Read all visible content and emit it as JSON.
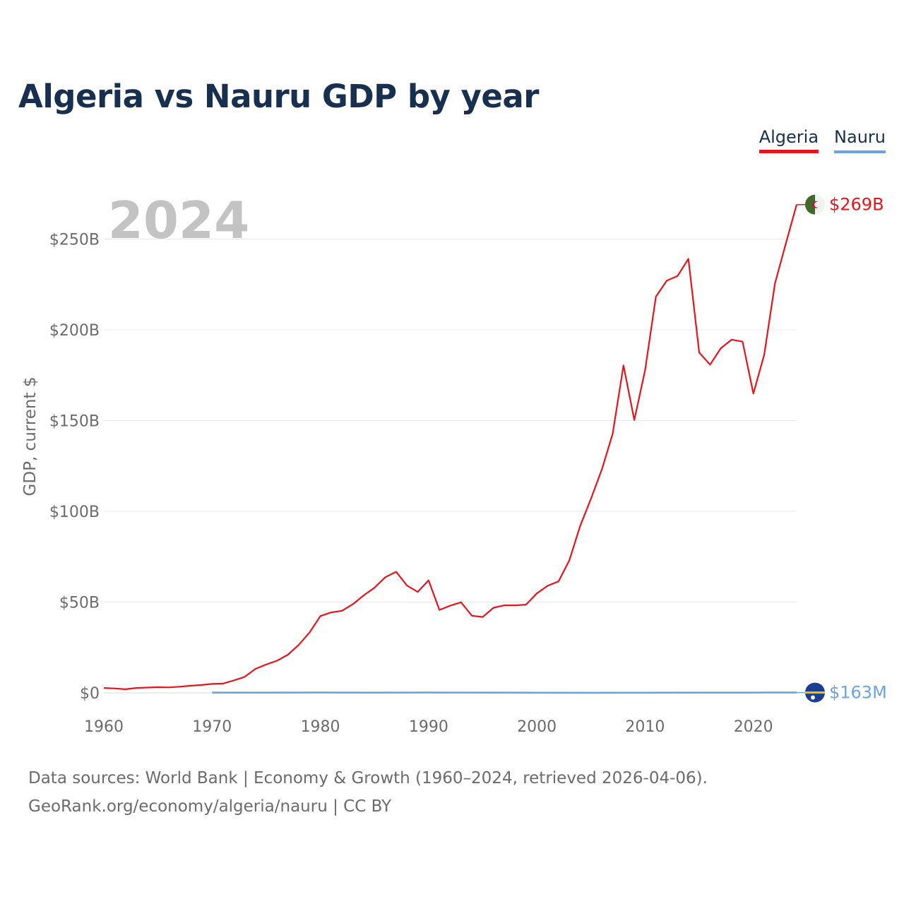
{
  "title": "Algeria vs Nauru GDP by year",
  "legend": [
    {
      "label": "Algeria",
      "color": "#e8141b"
    },
    {
      "label": "Nauru",
      "color": "#69a5e4"
    }
  ],
  "footer": {
    "line1": "Data sources: World Bank | Economy & Growth (1960–2024, retrieved 2026-04-06).",
    "line2": "GeoRank.org/economy/algeria/nauru | CC BY"
  },
  "chart_data": {
    "type": "line",
    "title": "Algeria vs Nauru GDP by year",
    "year_watermark": "2024",
    "ylabel": "GDP, current $",
    "xlabel": "",
    "xlim": [
      1960,
      2024
    ],
    "ylim": [
      0,
      260
    ],
    "y_unit": "billions of current US$",
    "x_ticks": [
      1960,
      1970,
      1980,
      1990,
      2000,
      2010,
      2020
    ],
    "x_tick_labels": [
      "1960",
      "1970",
      "1980",
      "1990",
      "2000",
      "2010",
      "2020"
    ],
    "y_ticks": [
      0,
      50,
      100,
      150,
      200,
      250
    ],
    "y_tick_labels": [
      "$0",
      "$50B",
      "$100B",
      "$150B",
      "$200B",
      "$250B"
    ],
    "grid": true,
    "legend_position": "top-right",
    "series": [
      {
        "name": "Algeria",
        "color": "#e8141b",
        "flag_icon": "algeria-flag-icon",
        "end_label": "$269B",
        "x": [
          1960,
          1961,
          1962,
          1963,
          1964,
          1965,
          1966,
          1967,
          1968,
          1969,
          1970,
          1971,
          1972,
          1973,
          1974,
          1975,
          1976,
          1977,
          1978,
          1979,
          1980,
          1981,
          1982,
          1983,
          1984,
          1985,
          1986,
          1987,
          1988,
          1989,
          1990,
          1991,
          1992,
          1993,
          1994,
          1995,
          1996,
          1997,
          1998,
          1999,
          2000,
          2001,
          2002,
          2003,
          2004,
          2005,
          2006,
          2007,
          2008,
          2009,
          2010,
          2011,
          2012,
          2013,
          2014,
          2015,
          2016,
          2017,
          2018,
          2019,
          2020,
          2021,
          2022,
          2023,
          2024
        ],
        "values": [
          2.7,
          2.4,
          2.0,
          2.7,
          2.9,
          3.1,
          3.0,
          3.4,
          3.9,
          4.3,
          4.9,
          5.1,
          6.8,
          8.8,
          13.2,
          15.6,
          17.7,
          21.0,
          26.4,
          33.2,
          42.3,
          44.3,
          45.2,
          48.8,
          53.7,
          57.9,
          63.7,
          66.7,
          59.1,
          55.6,
          62.0,
          45.7,
          48.0,
          49.9,
          42.5,
          41.8,
          46.9,
          48.2,
          48.2,
          48.6,
          54.8,
          59.0,
          61.4,
          73.0,
          91.9,
          107.0,
          123.0,
          142.6,
          180.4,
          150.3,
          177.8,
          218.3,
          227.1,
          229.7,
          239.1,
          187.5,
          180.8,
          189.9,
          194.6,
          193.5,
          164.9,
          186.2,
          225.6,
          247.6,
          269.0
        ]
      },
      {
        "name": "Nauru",
        "color": "#69a5e4",
        "flag_icon": "nauru-flag-icon",
        "end_label": "$163M",
        "x": [
          1970,
          1975,
          1980,
          1985,
          1990,
          1995,
          2000,
          2005,
          2010,
          2015,
          2020,
          2021,
          2022,
          2023,
          2024
        ],
        "values": [
          0.1,
          0.12,
          0.15,
          0.13,
          0.14,
          0.1,
          0.06,
          0.03,
          0.06,
          0.1,
          0.13,
          0.14,
          0.15,
          0.16,
          0.163
        ]
      }
    ]
  }
}
